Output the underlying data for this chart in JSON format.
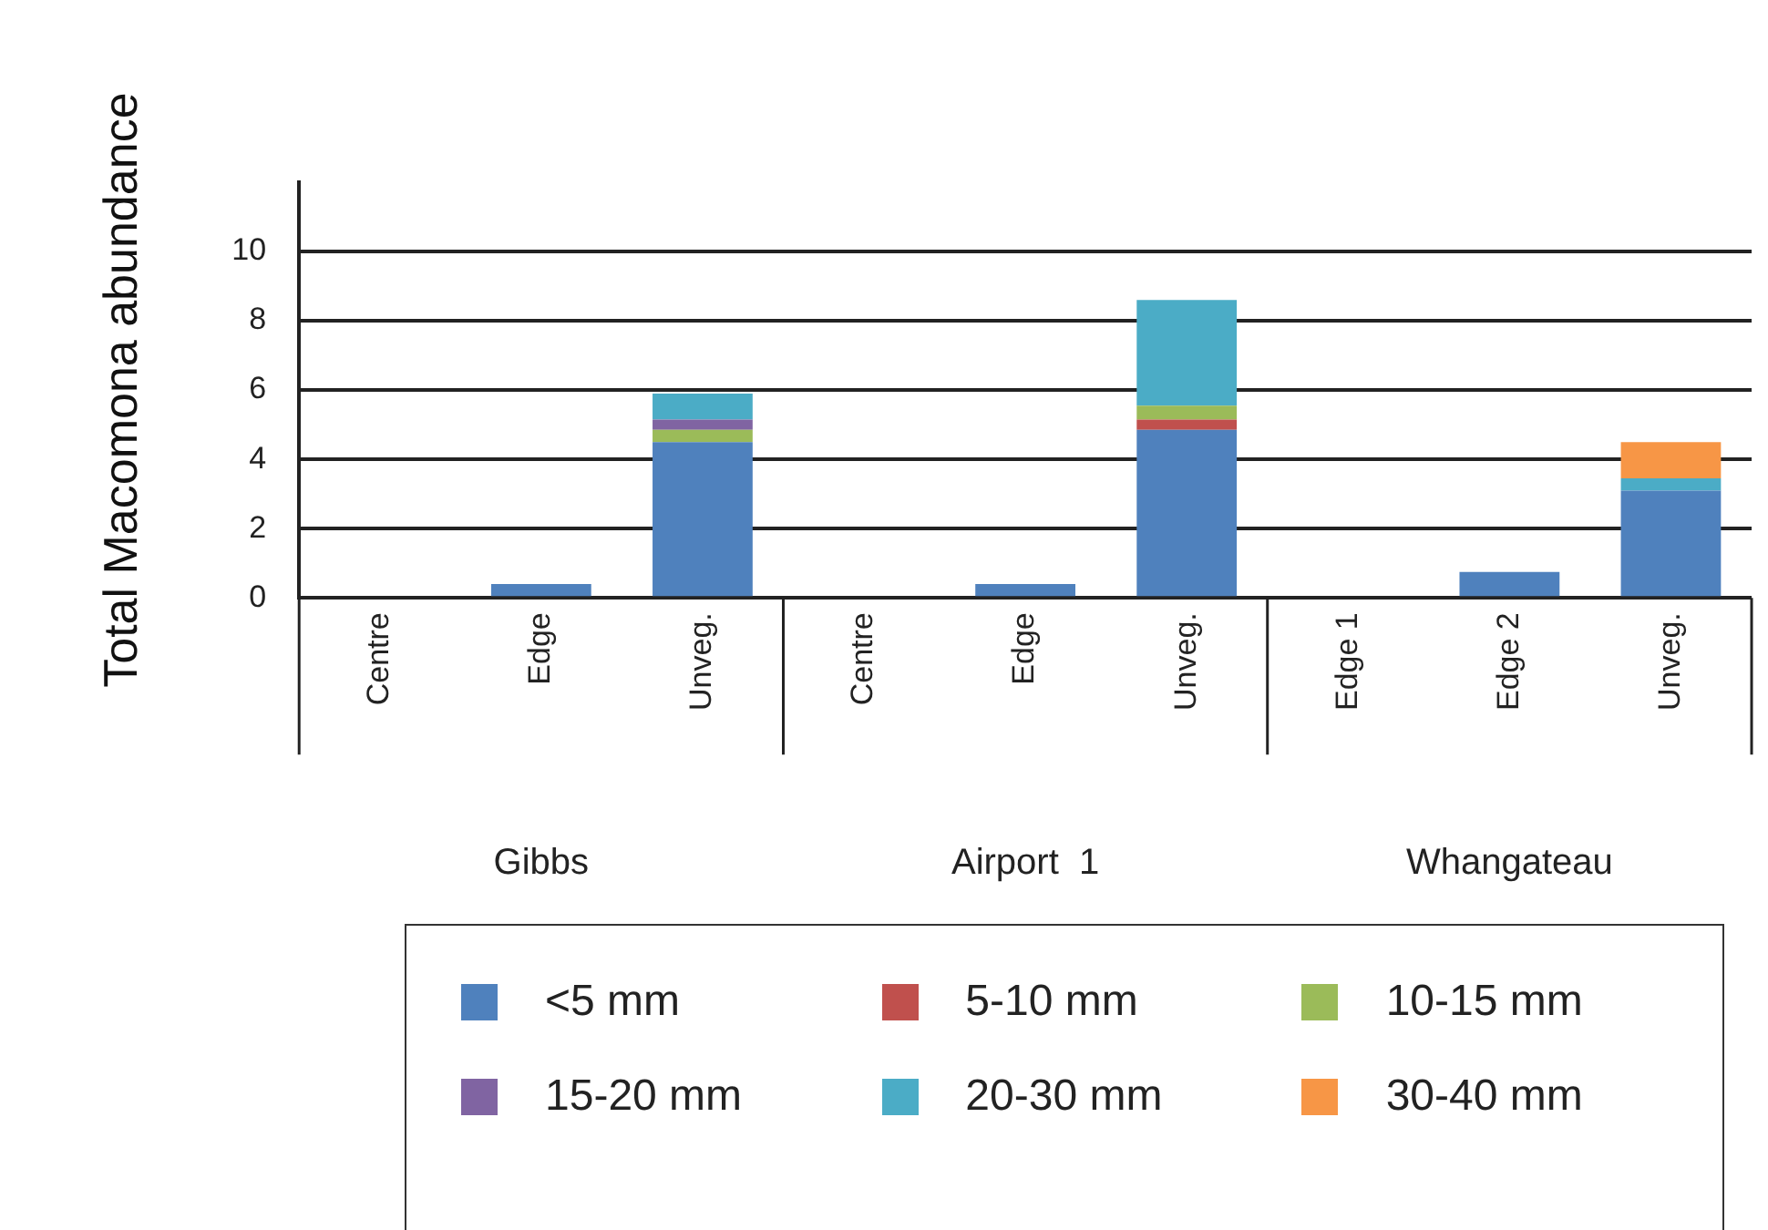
{
  "chart_data": {
    "type": "bar",
    "stacked": true,
    "ylabel": "Total Macomona abundance",
    "categories": [
      "Centre",
      "Edge",
      "Unveg.",
      "Centre",
      "Edge",
      "Unveg.",
      "Edge 1",
      "Edge 2",
      "Unveg."
    ],
    "annotations": [
      "Gibbs",
      "Airport  1",
      "Whangateau"
    ],
    "series": [
      {
        "name": "<5 mm",
        "color": "#4f81bd",
        "values": [
          0,
          0.4,
          4.5,
          0,
          0.4,
          4.85,
          0,
          0.75,
          3.1
        ]
      },
      {
        "name": "5-10 mm",
        "color": "#c0504d",
        "values": [
          0,
          0,
          0,
          0,
          0,
          0.3,
          0,
          0,
          0
        ]
      },
      {
        "name": "10-15 mm",
        "color": "#9bbb59",
        "values": [
          0,
          0,
          0.35,
          0,
          0,
          0.4,
          0,
          0,
          0
        ]
      },
      {
        "name": "15-20 mm",
        "color": "#8064a2",
        "values": [
          0,
          0,
          0.3,
          0,
          0,
          0,
          0,
          0,
          0
        ]
      },
      {
        "name": "20-30 mm",
        "color": "#4bacc6",
        "values": [
          0,
          0,
          0.75,
          0,
          0,
          3.05,
          0,
          0,
          0.35
        ]
      },
      {
        "name": "30-40 mm",
        "color": "#f79646",
        "values": [
          0,
          0,
          0,
          0,
          0,
          0,
          0,
          0,
          1.05
        ]
      }
    ],
    "ylim": [
      0,
      12
    ],
    "yticks": [
      0,
      2,
      4,
      6,
      8,
      10
    ],
    "grid": "y",
    "legend": "bottom"
  }
}
